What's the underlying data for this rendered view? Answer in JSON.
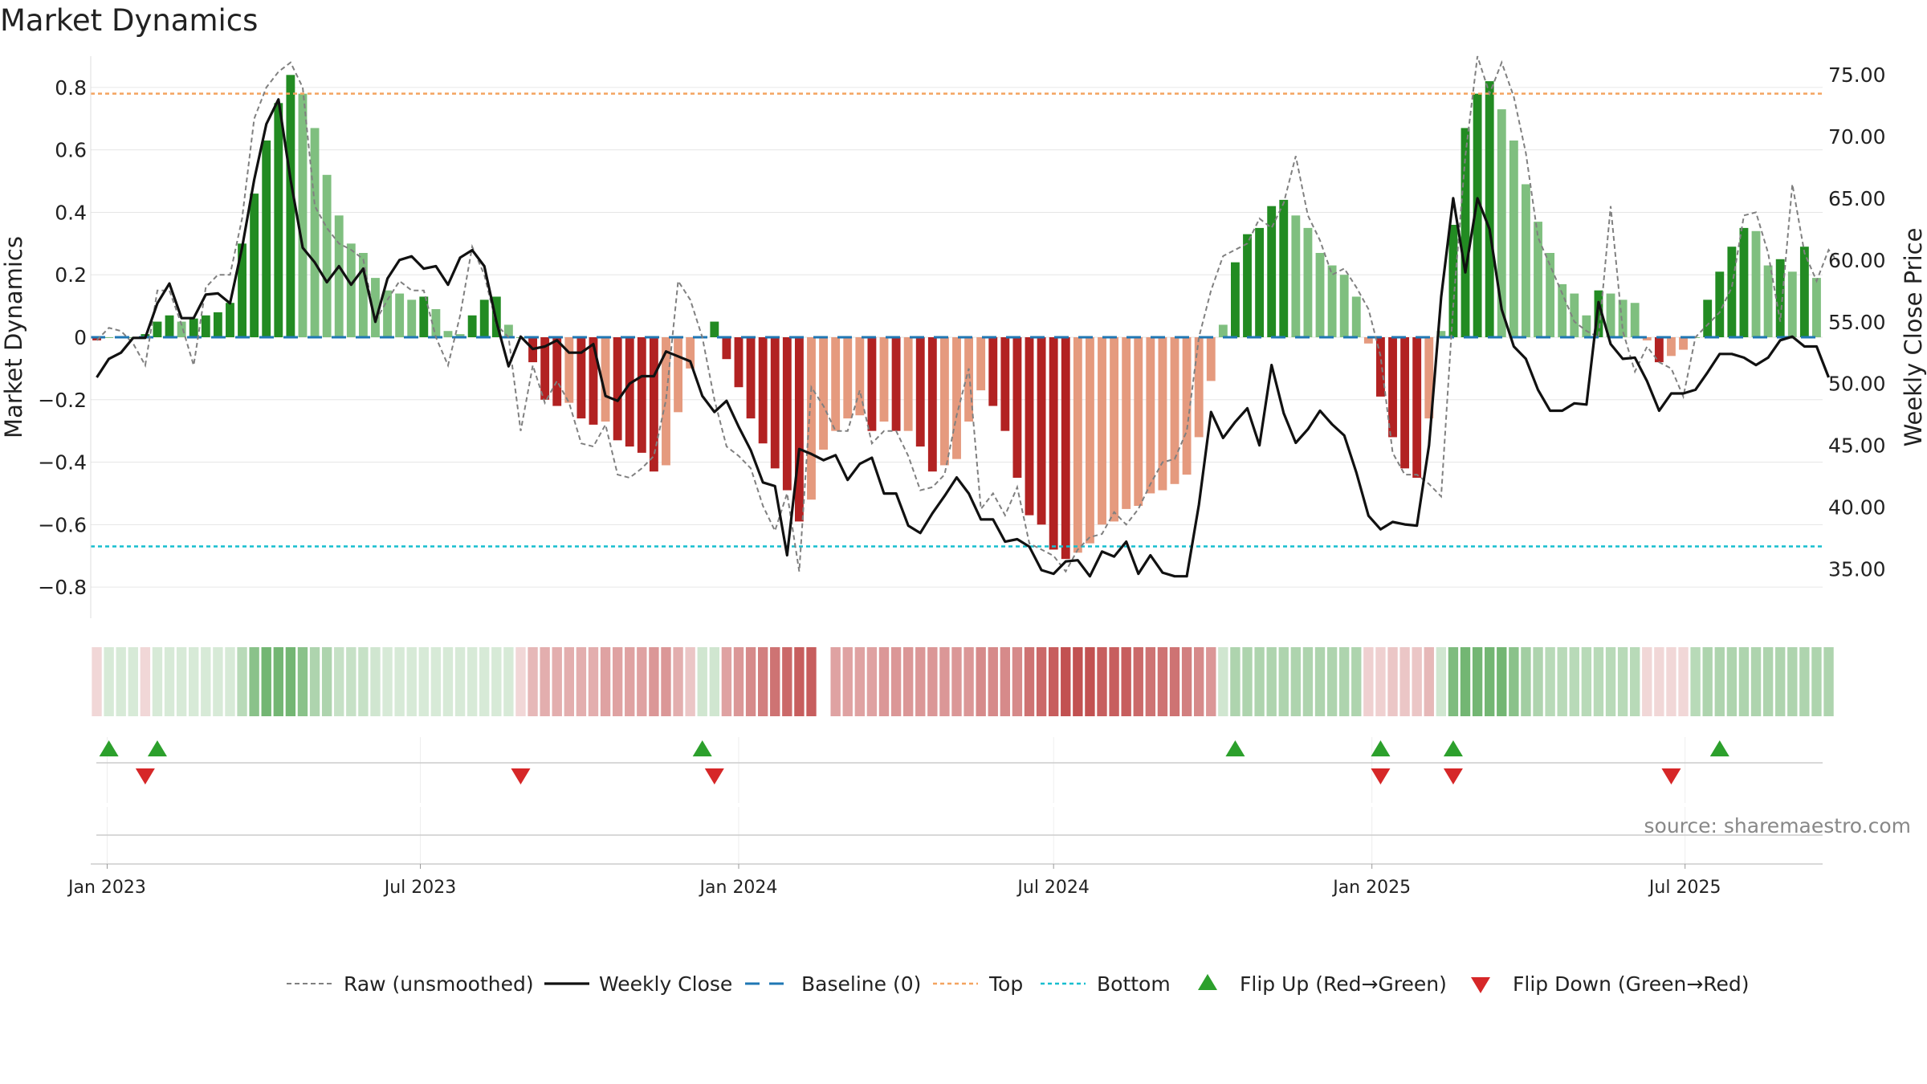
{
  "title": "Market Dynamics",
  "source": "source: sharemaestro.com",
  "chart_data": {
    "type": "bar",
    "title": "Market Dynamics",
    "ylabel_left": "Market Dynamics",
    "ylabel_right": "Weekly Close Price",
    "ylim_left": [
      -0.9,
      0.9
    ],
    "ylim_right": [
      31.0,
      76.5
    ],
    "yticks_left": [
      "0.8",
      "0.6",
      "0.4",
      "0.2",
      "0",
      "−0.2",
      "−0.4",
      "−0.6",
      "−0.8"
    ],
    "yticks_left_values": [
      0.8,
      0.6,
      0.4,
      0.2,
      0,
      -0.2,
      -0.4,
      -0.6,
      -0.8
    ],
    "yticks_right": [
      "75.00",
      "70.00",
      "65.00",
      "60.00",
      "55.00",
      "50.00",
      "45.00",
      "40.00",
      "35.00"
    ],
    "yticks_right_values": [
      75,
      70,
      65,
      60,
      55,
      50,
      45,
      40,
      35
    ],
    "x_start": "2022-12-26",
    "x_step_days": 7,
    "x_ticks": [
      {
        "label": "Jan 2023",
        "date": "2023-01-01"
      },
      {
        "label": "Jul 2023",
        "date": "2023-07-01"
      },
      {
        "label": "Jan 2024",
        "date": "2024-01-01"
      },
      {
        "label": "Jul 2024",
        "date": "2024-07-01"
      },
      {
        "label": "Jan 2025",
        "date": "2025-01-01"
      },
      {
        "label": "Jul 2025",
        "date": "2025-07-01"
      }
    ],
    "top_level": 0.78,
    "bottom_level": -0.67,
    "baseline": 0,
    "bars": [
      -0.01,
      0.0,
      0.0,
      0.0,
      0.01,
      0.05,
      0.07,
      0.05,
      0.06,
      0.07,
      0.08,
      0.11,
      0.3,
      0.46,
      0.63,
      0.75,
      0.84,
      0.78,
      0.67,
      0.52,
      0.39,
      0.3,
      0.27,
      0.19,
      0.15,
      0.14,
      0.12,
      0.13,
      0.09,
      0.02,
      0.01,
      0.07,
      0.12,
      0.13,
      0.04,
      0.0,
      -0.08,
      -0.2,
      -0.22,
      -0.21,
      -0.26,
      -0.28,
      -0.27,
      -0.33,
      -0.35,
      -0.37,
      -0.43,
      -0.41,
      -0.24,
      -0.1,
      0.0,
      0.05,
      -0.07,
      -0.16,
      -0.26,
      -0.34,
      -0.42,
      -0.49,
      -0.59,
      -0.52,
      -0.36,
      -0.3,
      -0.26,
      -0.25,
      -0.3,
      -0.27,
      -0.3,
      -0.3,
      -0.35,
      -0.43,
      -0.41,
      -0.39,
      -0.27,
      -0.17,
      -0.22,
      -0.3,
      -0.45,
      -0.57,
      -0.6,
      -0.68,
      -0.71,
      -0.69,
      -0.66,
      -0.6,
      -0.59,
      -0.55,
      -0.54,
      -0.5,
      -0.49,
      -0.47,
      -0.44,
      -0.32,
      -0.14,
      0.04,
      0.24,
      0.33,
      0.35,
      0.42,
      0.44,
      0.39,
      0.35,
      0.27,
      0.23,
      0.2,
      0.13,
      -0.02,
      -0.19,
      -0.32,
      -0.42,
      -0.45,
      -0.26,
      0.02,
      0.36,
      0.67,
      0.78,
      0.82,
      0.73,
      0.63,
      0.49,
      0.37,
      0.27,
      0.17,
      0.14,
      0.07,
      0.15,
      0.14,
      0.12,
      0.11,
      -0.01,
      -0.08,
      -0.06,
      -0.04,
      0.0,
      0.12,
      0.21,
      0.29,
      0.35,
      0.34,
      0.23,
      0.25,
      0.21,
      0.29,
      0.19
    ],
    "raw": [
      -0.01,
      0.03,
      0.02,
      -0.02,
      -0.09,
      0.15,
      0.15,
      0.04,
      -0.09,
      0.16,
      0.2,
      0.2,
      0.38,
      0.7,
      0.8,
      0.85,
      0.88,
      0.8,
      0.42,
      0.35,
      0.3,
      0.28,
      0.25,
      0.05,
      0.12,
      0.18,
      0.15,
      0.15,
      0.0,
      -0.09,
      0.07,
      0.29,
      0.2,
      0.04,
      0.0,
      -0.3,
      -0.09,
      -0.21,
      -0.14,
      -0.21,
      -0.34,
      -0.35,
      -0.28,
      -0.44,
      -0.45,
      -0.42,
      -0.38,
      -0.2,
      0.18,
      0.12,
      0.0,
      -0.2,
      -0.35,
      -0.38,
      -0.42,
      -0.54,
      -0.62,
      -0.5,
      -0.75,
      -0.16,
      -0.22,
      -0.3,
      -0.3,
      -0.17,
      -0.34,
      -0.3,
      -0.3,
      -0.38,
      -0.49,
      -0.48,
      -0.44,
      -0.25,
      -0.1,
      -0.55,
      -0.5,
      -0.57,
      -0.48,
      -0.66,
      -0.68,
      -0.7,
      -0.75,
      -0.68,
      -0.64,
      -0.63,
      -0.56,
      -0.6,
      -0.55,
      -0.47,
      -0.4,
      -0.39,
      -0.3,
      0.0,
      0.15,
      0.26,
      0.28,
      0.3,
      0.38,
      0.35,
      0.43,
      0.58,
      0.39,
      0.31,
      0.2,
      0.22,
      0.16,
      0.09,
      -0.06,
      -0.37,
      -0.44,
      -0.44,
      -0.47,
      -0.51,
      0.1,
      0.58,
      0.9,
      0.78,
      0.88,
      0.77,
      0.59,
      0.32,
      0.23,
      0.14,
      0.05,
      0.02,
      0.0,
      0.42,
      0.02,
      -0.11,
      -0.03,
      -0.08,
      -0.1,
      -0.19,
      0.0,
      0.04,
      0.08,
      0.16,
      0.39,
      0.4,
      0.27,
      0.05,
      0.49,
      0.27,
      0.18,
      0.28,
      0.23
    ],
    "close": [
      50.5,
      52.0,
      52.5,
      53.7,
      53.7,
      56.5,
      58.1,
      55.3,
      55.3,
      57.2,
      57.3,
      56.5,
      61.0,
      66.5,
      71.0,
      73.0,
      66.5,
      61.0,
      59.8,
      58.2,
      59.5,
      58.0,
      59.3,
      55.0,
      58.5,
      60.0,
      60.3,
      59.3,
      59.5,
      58.0,
      60.2,
      60.8,
      59.5,
      55.0,
      51.4,
      53.8,
      52.8,
      53.0,
      53.5,
      52.5,
      52.5,
      53.2,
      49.0,
      48.6,
      50.0,
      50.6,
      50.6,
      52.6,
      52.2,
      51.8,
      49.0,
      47.7,
      48.6,
      46.5,
      44.6,
      42.0,
      41.7,
      36.1,
      44.7,
      44.3,
      43.8,
      44.2,
      42.2,
      43.5,
      44.0,
      41.1,
      41.1,
      38.5,
      37.9,
      39.5,
      40.9,
      42.4,
      41.1,
      39.0,
      39.0,
      37.2,
      37.4,
      36.8,
      34.9,
      34.6,
      35.6,
      35.7,
      34.4,
      36.4,
      36.0,
      37.2,
      34.6,
      36.1,
      34.7,
      34.4,
      34.4,
      40.2,
      47.7,
      45.6,
      46.9,
      48.0,
      45.0,
      51.5,
      47.6,
      45.2,
      46.3,
      47.8,
      46.7,
      45.8,
      42.8,
      39.3,
      38.2,
      38.8,
      38.6,
      38.5,
      45.0,
      57.0,
      65.0,
      59.0,
      65.0,
      62.5,
      56.0,
      53.0,
      52.0,
      49.5,
      47.8,
      47.8,
      48.4,
      48.3,
      56.6,
      53.2,
      52.0,
      52.1,
      50.2,
      47.8,
      49.2,
      49.2,
      49.5,
      50.9,
      52.4,
      52.4,
      52.1,
      51.5,
      52.1,
      53.5,
      53.8,
      53.0,
      53.0,
      50.5
    ],
    "strip_values": [
      -0.05,
      0.05,
      0.05,
      0.05,
      -0.05,
      0.1,
      0.1,
      0.15,
      0.15,
      0.15,
      0.15,
      0.15,
      0.3,
      0.5,
      0.6,
      0.6,
      0.6,
      0.5,
      0.35,
      0.35,
      0.25,
      0.25,
      0.25,
      0.2,
      0.15,
      0.15,
      0.15,
      0.15,
      0.15,
      0.15,
      0.15,
      0.15,
      0.15,
      0.15,
      0.15,
      -0.1,
      -0.3,
      -0.35,
      -0.35,
      -0.35,
      -0.35,
      -0.35,
      -0.4,
      -0.4,
      -0.4,
      -0.4,
      -0.45,
      -0.45,
      -0.35,
      -0.25,
      0.2,
      0.2,
      -0.4,
      -0.45,
      -0.5,
      -0.55,
      -0.6,
      -0.65,
      -0.7,
      -0.7,
      null,
      -0.4,
      -0.4,
      -0.4,
      -0.4,
      -0.45,
      -0.45,
      -0.45,
      -0.45,
      -0.45,
      -0.45,
      -0.45,
      -0.45,
      -0.5,
      -0.5,
      -0.5,
      -0.5,
      -0.6,
      -0.65,
      -0.7,
      -0.75,
      -0.75,
      -0.75,
      -0.7,
      -0.7,
      -0.7,
      -0.65,
      -0.6,
      -0.6,
      -0.6,
      -0.55,
      -0.5,
      -0.45,
      0.2,
      0.35,
      0.35,
      0.35,
      0.35,
      0.35,
      0.35,
      0.35,
      0.35,
      0.35,
      0.35,
      0.35,
      -0.2,
      -0.2,
      -0.25,
      -0.25,
      -0.25,
      -0.3,
      0.2,
      0.55,
      0.6,
      0.6,
      0.6,
      0.6,
      0.5,
      0.4,
      0.35,
      0.3,
      0.3,
      0.3,
      0.3,
      0.3,
      0.3,
      0.3,
      0.3,
      -0.1,
      -0.1,
      -0.1,
      -0.1,
      0.3,
      0.35,
      0.35,
      0.35,
      0.35,
      0.35,
      0.35,
      0.35,
      0.35,
      0.35,
      0.35,
      0.35
    ],
    "flips_up": [
      1,
      5,
      50,
      94,
      106,
      112,
      134
    ],
    "flips_down": [
      4,
      35,
      51,
      106,
      112,
      130
    ],
    "colors": {
      "strong_green": "#228B22",
      "light_green": "#7FBF7F",
      "strong_red": "#B22222",
      "light_red": "#E59A7E",
      "close_line": "#111111",
      "raw_line": "#808080",
      "baseline": "#1F77B4",
      "top": "#F4A460",
      "bottom": "#17BECF",
      "flip_up": "#2CA02C",
      "flip_down": "#D62728"
    },
    "legend": [
      {
        "label": "Raw (unsmoothed)",
        "kind": "raw"
      },
      {
        "label": "Weekly Close",
        "kind": "close"
      },
      {
        "label": "Baseline (0)",
        "kind": "baseline"
      },
      {
        "label": "Top",
        "kind": "top"
      },
      {
        "label": "Bottom",
        "kind": "bottom"
      },
      {
        "label": "Flip Up (Red→Green)",
        "kind": "flip_up"
      },
      {
        "label": "Flip Down (Green→Red)",
        "kind": "flip_down"
      }
    ],
    "legend_position": "bottom"
  }
}
